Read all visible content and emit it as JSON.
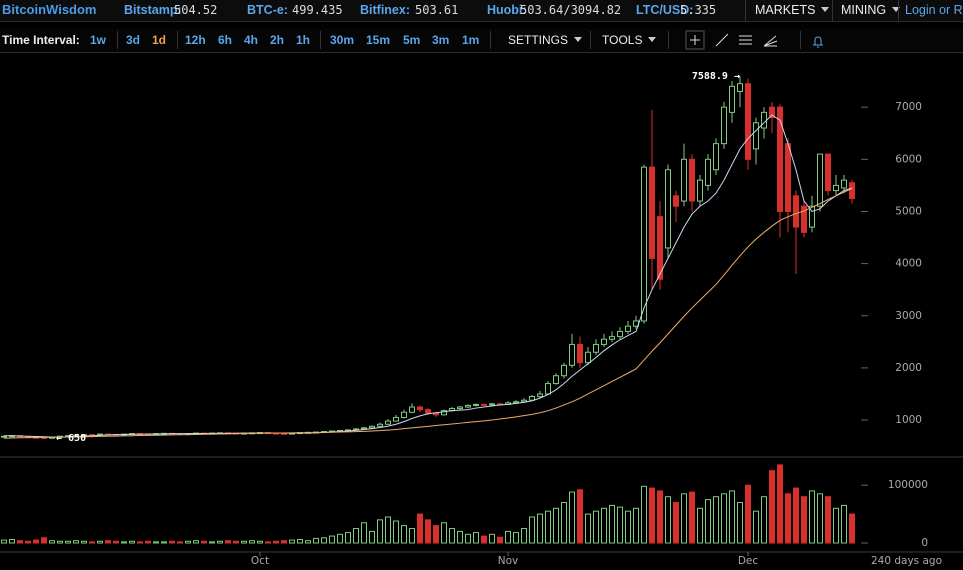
{
  "header": {
    "brand": "BitcoinWisdom",
    "tickers": [
      {
        "label": "Bitstamp:",
        "value": "504.52"
      },
      {
        "label": "BTC-e:",
        "value": "499.435"
      },
      {
        "label": "Bitfinex:",
        "value": "503.61"
      },
      {
        "label": "Huobi:",
        "value": "503.64/3094.82"
      },
      {
        "label": "LTC/USD:",
        "value": "5.335"
      }
    ],
    "menus": [
      "MARKETS",
      "MINING"
    ],
    "login": "Login or R"
  },
  "toolbar": {
    "label": "Time Interval:",
    "intervals": [
      "1w",
      "3d",
      "1d",
      "12h",
      "6h",
      "4h",
      "2h",
      "1h",
      "30m",
      "15m",
      "5m",
      "3m",
      "1m"
    ],
    "active": "1d",
    "menus": [
      "SETTINGS",
      "TOOLS"
    ]
  },
  "chart_data": {
    "type": "candlestick",
    "categories": [
      null,
      null,
      null,
      null,
      null,
      null,
      null,
      null,
      null,
      null,
      null,
      null,
      null,
      null,
      null,
      null,
      null,
      null,
      null,
      null,
      null,
      null,
      null,
      null,
      null,
      null,
      null,
      null,
      null,
      null,
      null,
      null,
      "Oct",
      null,
      null,
      null,
      null,
      null,
      null,
      null,
      null,
      null,
      null,
      null,
      null,
      null,
      null,
      null,
      null,
      null,
      null,
      null,
      null,
      null,
      null,
      null,
      null,
      null,
      null,
      null,
      null,
      null,
      null,
      "Nov",
      null,
      null,
      null,
      null,
      null,
      null,
      null,
      null,
      null,
      null,
      null,
      null,
      null,
      null,
      null,
      null,
      null,
      null,
      null,
      null,
      null,
      null,
      null,
      null,
      null,
      null,
      null,
      null,
      null,
      "Dec",
      null,
      null,
      null,
      null,
      null,
      null,
      null,
      null,
      null,
      null,
      null,
      null,
      null
    ],
    "open": [
      680,
      690,
      700,
      680,
      670,
      665,
      660,
      670,
      690,
      700,
      710,
      720,
      715,
      730,
      725,
      720,
      730,
      740,
      735,
      730,
      740,
      745,
      740,
      735,
      740,
      750,
      745,
      750,
      755,
      750,
      745,
      750,
      755,
      760,
      750,
      745,
      740,
      750,
      760,
      765,
      770,
      780,
      790,
      800,
      810,
      830,
      850,
      880,
      920,
      980,
      1050,
      1150,
      1250,
      1200,
      1130,
      1100,
      1180,
      1220,
      1250,
      1280,
      1300,
      1290,
      1310,
      1300,
      1330,
      1350,
      1380,
      1450,
      1500,
      1700,
      1850,
      2050,
      2450,
      2100,
      2300,
      2450,
      2550,
      2600,
      2700,
      2800,
      2900,
      5850,
      4900,
      4300,
      5300,
      5200,
      6000,
      5200,
      5500,
      5800,
      6300,
      6900,
      7300,
      7450,
      6200,
      6600,
      7000,
      7000,
      6300,
      5300,
      5100,
      4700,
      5100,
      6100,
      5400,
      5450,
      5550
    ],
    "high": [
      700,
      710,
      705,
      690,
      675,
      670,
      680,
      700,
      710,
      720,
      730,
      725,
      740,
      735,
      730,
      738,
      748,
      745,
      740,
      748,
      752,
      750,
      745,
      748,
      758,
      755,
      757,
      762,
      760,
      755,
      757,
      762,
      768,
      765,
      755,
      750,
      758,
      768,
      772,
      778,
      790,
      800,
      810,
      825,
      845,
      870,
      900,
      950,
      1020,
      1100,
      1200,
      1320,
      1280,
      1230,
      1160,
      1200,
      1250,
      1270,
      1300,
      1320,
      1320,
      1330,
      1340,
      1360,
      1380,
      1420,
      1480,
      1560,
      1750,
      1900,
      2100,
      2650,
      2600,
      2400,
      2550,
      2650,
      2700,
      2780,
      2900,
      3000,
      5900,
      6950,
      5200,
      5900,
      5400,
      6300,
      6100,
      5700,
      6100,
      6400,
      7100,
      7500,
      7588.9,
      7550,
      6800,
      7000,
      7100,
      7050,
      6400,
      5400,
      5200,
      5300,
      6100,
      6100,
      5700,
      5700,
      5600
    ],
    "low": [
      670,
      680,
      670,
      660,
      655,
      650,
      655,
      665,
      685,
      695,
      705,
      705,
      710,
      715,
      712,
      715,
      725,
      728,
      722,
      725,
      735,
      733,
      728,
      730,
      735,
      738,
      740,
      745,
      743,
      738,
      740,
      745,
      750,
      742,
      738,
      732,
      735,
      745,
      755,
      760,
      765,
      775,
      785,
      795,
      805,
      825,
      840,
      870,
      910,
      970,
      1030,
      1130,
      1150,
      1100,
      1060,
      1090,
      1160,
      1200,
      1230,
      1260,
      1270,
      1280,
      1280,
      1290,
      1320,
      1340,
      1360,
      1430,
      1480,
      1680,
      1800,
      2000,
      2000,
      2050,
      2250,
      2400,
      2500,
      2550,
      2650,
      2750,
      2850,
      3500,
      3500,
      4100,
      4800,
      5100,
      5000,
      5100,
      5400,
      5700,
      6200,
      6700,
      7000,
      5800,
      5900,
      6400,
      6500,
      4500,
      4600,
      3800,
      4500,
      4600,
      5000,
      5300,
      5300,
      5350,
      5150
    ],
    "close": [
      690,
      700,
      680,
      670,
      660,
      660,
      670,
      690,
      700,
      710,
      720,
      715,
      730,
      725,
      720,
      730,
      740,
      735,
      730,
      740,
      745,
      740,
      735,
      740,
      750,
      745,
      750,
      755,
      750,
      745,
      750,
      755,
      760,
      750,
      745,
      740,
      750,
      760,
      765,
      770,
      780,
      790,
      800,
      810,
      830,
      850,
      880,
      920,
      980,
      1050,
      1150,
      1250,
      1200,
      1130,
      1100,
      1180,
      1220,
      1250,
      1280,
      1300,
      1290,
      1310,
      1300,
      1330,
      1350,
      1380,
      1450,
      1500,
      1700,
      1850,
      2050,
      2450,
      2100,
      2300,
      2450,
      2550,
      2600,
      2700,
      2800,
      2900,
      5850,
      4100,
      3700,
      5800,
      5100,
      6000,
      5200,
      5600,
      6000,
      6300,
      7000,
      7400,
      7450,
      6000,
      6700,
      6900,
      6800,
      5000,
      5000,
      4700,
      4600,
      5100,
      6100,
      5400,
      5500,
      5600,
      5250
    ],
    "volume": [
      5000,
      6000,
      4000,
      3000,
      5000,
      9000,
      4000,
      3000,
      3000,
      4000,
      3000,
      2000,
      3000,
      4000,
      3000,
      2000,
      3000,
      2000,
      3000,
      2000,
      2000,
      3000,
      2000,
      3000,
      4000,
      3000,
      2000,
      3000,
      4000,
      3000,
      3000,
      4000,
      3000,
      2000,
      3000,
      4000,
      5000,
      6000,
      4000,
      8000,
      9000,
      12000,
      15000,
      18000,
      25000,
      35000,
      20000,
      40000,
      45000,
      38000,
      30000,
      25000,
      50000,
      40000,
      30000,
      35000,
      25000,
      20000,
      15000,
      18000,
      12000,
      15000,
      10000,
      20000,
      18000,
      25000,
      45000,
      50000,
      55000,
      60000,
      70000,
      88000,
      92000,
      50000,
      55000,
      60000,
      65000,
      62000,
      55000,
      60000,
      98000,
      95000,
      90000,
      80000,
      70000,
      85000,
      88000,
      60000,
      75000,
      80000,
      85000,
      90000,
      70000,
      100000,
      55000,
      80000,
      125000,
      135000,
      85000,
      95000,
      80000,
      90000,
      85000,
      80000,
      60000,
      65000,
      50000
    ],
    "ma": [
      {
        "color": "#c9d9f2",
        "values": [
          700,
          698,
          694,
          690,
          685,
          680,
          676,
          675,
          678,
          685,
          692,
          700,
          707,
          715,
          720,
          723,
          727,
          730,
          731,
          733,
          736,
          739,
          740,
          741,
          742,
          743,
          744,
          745,
          747,
          748,
          749,
          750,
          752,
          752,
          751,
          750,
          750,
          751,
          753,
          756,
          762,
          770,
          780,
          790,
          803,
          818,
          835,
          857,
          883,
          920,
          970,
          1030,
          1080,
          1120,
          1140,
          1160,
          1180,
          1190,
          1200,
          1230,
          1250,
          1270,
          1290,
          1300,
          1320,
          1340,
          1370,
          1420,
          1490,
          1580,
          1700,
          1840,
          1960,
          2080,
          2200,
          2330,
          2440,
          2540,
          2620,
          2700,
          3150,
          3500,
          3800,
          4100,
          4400,
          4700,
          4950,
          5100,
          5200,
          5350,
          5600,
          5900,
          6200,
          6400,
          6550,
          6700,
          6850,
          6750,
          6300,
          5800,
          5200,
          5000,
          5050,
          5200,
          5300,
          5400,
          5450
        ]
      },
      {
        "color": "#f0ad6a",
        "values": [
          650,
          655,
          660,
          662,
          665,
          668,
          670,
          672,
          675,
          678,
          680,
          683,
          686,
          690,
          693,
          696,
          700,
          703,
          706,
          709,
          712,
          715,
          718,
          721,
          724,
          727,
          730,
          733,
          736,
          739,
          742,
          745,
          747,
          749,
          751,
          753,
          755,
          757,
          759,
          761,
          764,
          767,
          770,
          774,
          778,
          783,
          790,
          798,
          808,
          820,
          835,
          850,
          865,
          880,
          895,
          910,
          925,
          940,
          955,
          970,
          985,
          1000,
          1020,
          1040,
          1060,
          1085,
          1110,
          1140,
          1180,
          1230,
          1290,
          1350,
          1420,
          1500,
          1580,
          1660,
          1740,
          1820,
          1900,
          1980,
          2150,
          2320,
          2480,
          2650,
          2820,
          2990,
          3150,
          3300,
          3450,
          3600,
          3780,
          3970,
          4150,
          4320,
          4470,
          4600,
          4720,
          4830,
          4900,
          4960,
          5010,
          5080,
          5150,
          5230,
          5300,
          5370,
          5440
        ]
      }
    ],
    "up_color": "#7fcb7f",
    "down_color": "#d8302c",
    "ylim": [
      330,
      8000
    ],
    "yticks": [
      1000,
      2000,
      3000,
      4000,
      5000,
      6000,
      7000
    ],
    "volume_ylim": [
      0,
      140000
    ],
    "volume_yticks": [
      0,
      100000
    ],
    "annotations": [
      "7588.9 →",
      "← 650"
    ],
    "footer": "240 days ago"
  }
}
